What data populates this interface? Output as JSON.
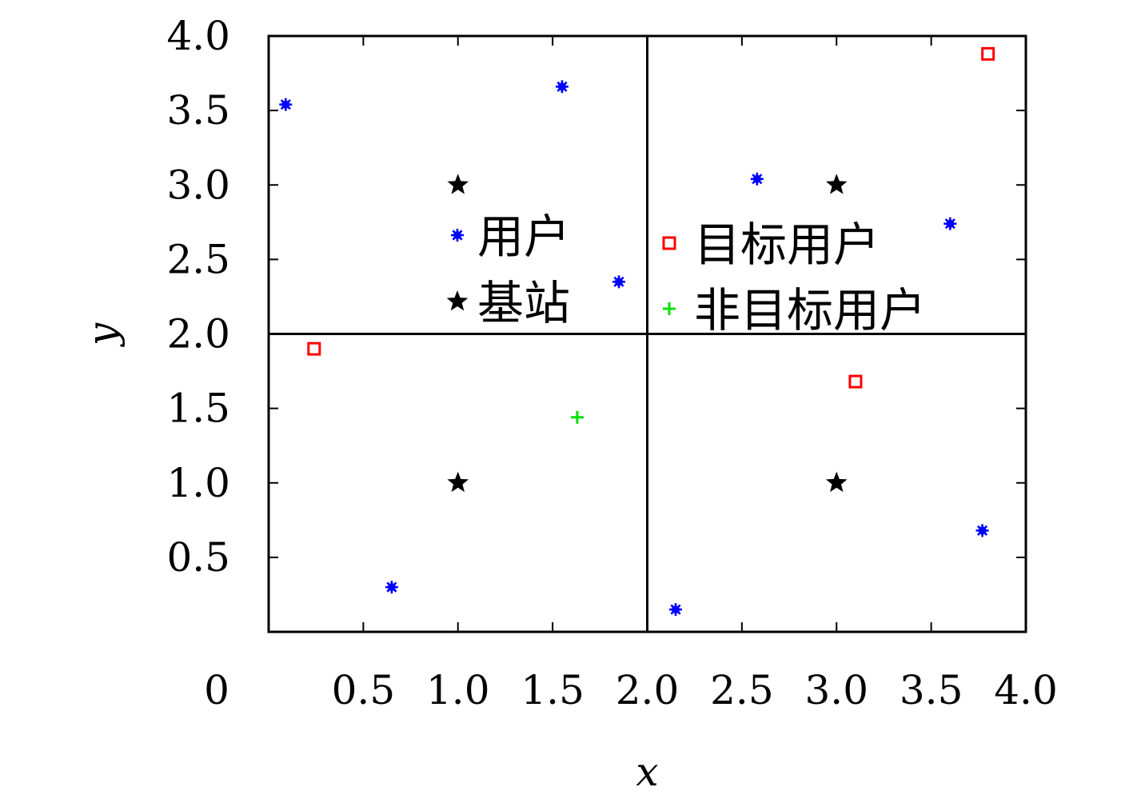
{
  "chart_data": {
    "type": "scatter",
    "title": "",
    "xlabel": "x",
    "ylabel": "y",
    "xlim": [
      0,
      4
    ],
    "ylim": [
      0,
      4
    ],
    "x_ticks": [
      0.5,
      1.0,
      1.5,
      2.0,
      2.5,
      3.0,
      3.5,
      4.0
    ],
    "x_tick_labels": [
      "0.5",
      "1.0",
      "1.5",
      "2.0",
      "2.5",
      "3.0",
      "3.5",
      "4.0"
    ],
    "y_ticks": [
      0.5,
      1.0,
      1.5,
      2.0,
      2.5,
      3.0,
      3.5,
      4.0
    ],
    "y_tick_labels": [
      "0.5",
      "1.0",
      "1.5",
      "2.0",
      "2.5",
      "3.0",
      "3.5",
      "4.0"
    ],
    "origin_label": "0",
    "grid": false,
    "dividers": {
      "x": 2.0,
      "y": 2.0
    },
    "series": [
      {
        "name": "用户",
        "marker": "asterisk",
        "color": "#0000ff",
        "x": [
          0.09,
          1.55,
          2.58,
          3.6,
          1.85,
          0.65,
          2.15,
          3.77
        ],
        "y": [
          3.54,
          3.66,
          3.04,
          2.74,
          2.35,
          0.3,
          0.15,
          0.68
        ]
      },
      {
        "name": "基站",
        "marker": "star",
        "color": "#000000",
        "x": [
          1.0,
          3.0,
          1.0,
          3.0
        ],
        "y": [
          3.0,
          3.0,
          1.0,
          1.0
        ]
      },
      {
        "name": "目标用户",
        "marker": "square",
        "color": "#ff0000",
        "x": [
          3.8,
          0.24,
          3.1
        ],
        "y": [
          3.88,
          1.9,
          1.68
        ]
      },
      {
        "name": "非目标用户",
        "marker": "plus",
        "color": "#00e000",
        "x": [
          1.63
        ],
        "y": [
          1.44
        ]
      }
    ],
    "legends": [
      {
        "placement": "center-left",
        "entries": [
          "用户",
          "基站"
        ]
      },
      {
        "placement": "center-right",
        "entries": [
          "目标用户",
          "非目标用户"
        ]
      }
    ]
  }
}
